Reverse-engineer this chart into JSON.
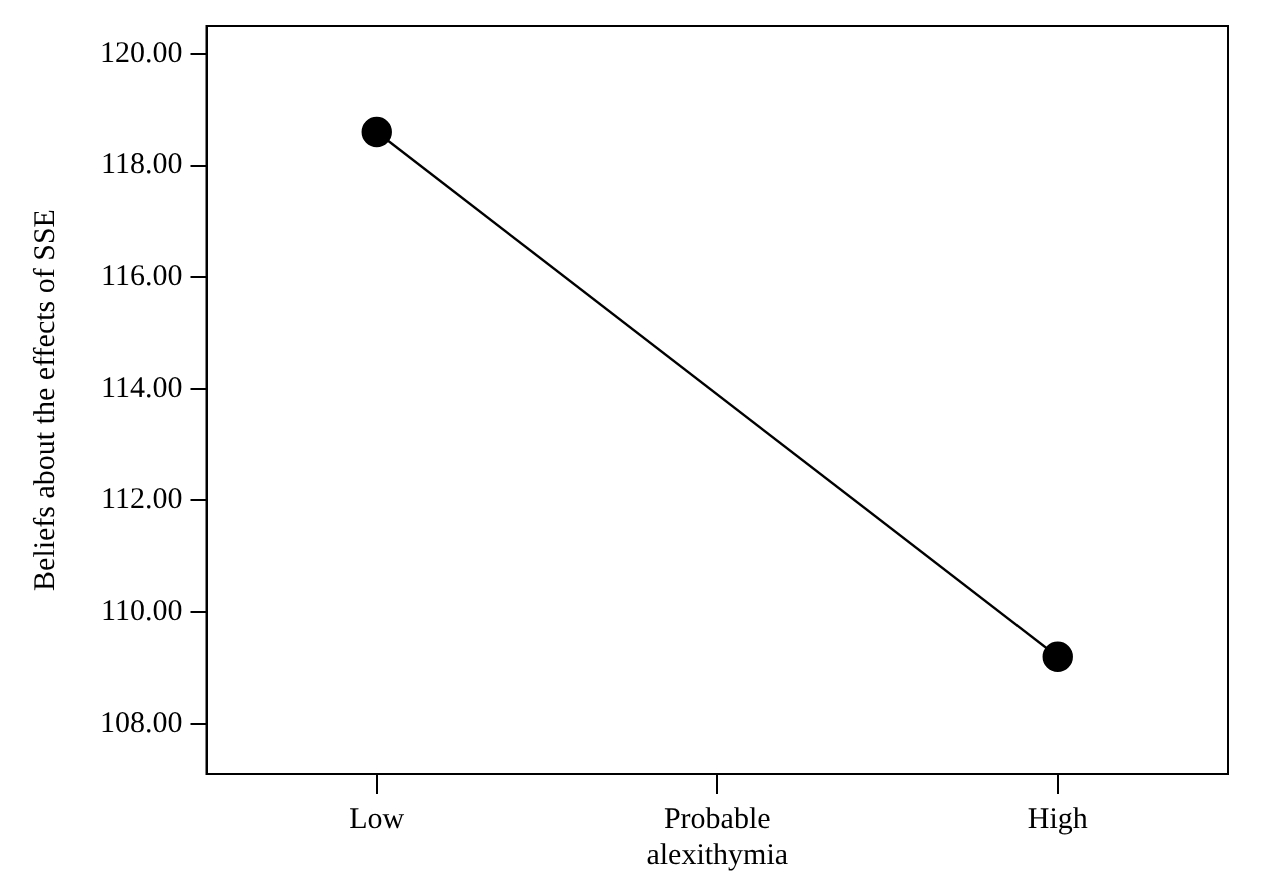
{
  "chart_data": {
    "type": "line",
    "ylabel": "Beliefs about the effects of SSE",
    "categories": [
      "Low",
      "Probable alexithymia",
      "High"
    ],
    "series": [
      {
        "color": "#000000",
        "values": [
          118.6,
          null,
          109.2
        ]
      }
    ],
    "ylim": [
      107.1,
      120.5
    ],
    "yticks": [
      {
        "value": 108,
        "label": "108.00"
      },
      {
        "value": 110,
        "label": "110.00"
      },
      {
        "value": 112,
        "label": "112.00"
      },
      {
        "value": 114,
        "label": "114.00"
      },
      {
        "value": 116,
        "label": "116.00"
      },
      {
        "value": 118,
        "label": "118.00"
      },
      {
        "value": 120,
        "label": "120.00"
      }
    ],
    "marker": "circle",
    "line_style": "solid"
  }
}
